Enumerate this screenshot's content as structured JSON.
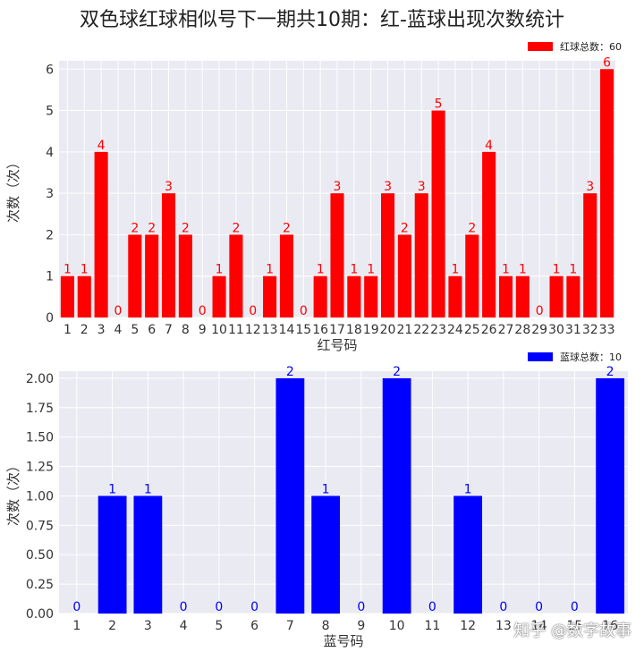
{
  "title": "双色球红球相似号下一期共10期：红-蓝球出现次数统计",
  "watermark": "知乎 @数字故事",
  "colors": {
    "red": "#ff0000",
    "blue": "#0000ff",
    "axes_bg": "#eaeaf2",
    "grid": "#ffffff"
  },
  "chart_data": [
    {
      "type": "bar",
      "categories": [
        "1",
        "2",
        "3",
        "4",
        "5",
        "6",
        "7",
        "8",
        "9",
        "10",
        "11",
        "12",
        "13",
        "14",
        "15",
        "16",
        "17",
        "18",
        "19",
        "20",
        "21",
        "22",
        "23",
        "24",
        "25",
        "26",
        "27",
        "28",
        "29",
        "30",
        "31",
        "32",
        "33"
      ],
      "values": [
        1,
        1,
        4,
        0,
        2,
        2,
        3,
        2,
        0,
        1,
        2,
        0,
        1,
        2,
        0,
        1,
        3,
        1,
        1,
        3,
        2,
        3,
        5,
        1,
        2,
        4,
        1,
        1,
        0,
        1,
        1,
        3,
        6
      ],
      "yticks": [
        "0",
        "1",
        "2",
        "3",
        "4",
        "5",
        "6"
      ],
      "ylim": [
        0,
        6.2
      ],
      "xlabel": "红号码",
      "ylabel": "次数（次）",
      "legend": "红球总数：60",
      "legend_position": "top-right",
      "color": "#ff0000",
      "grid": true
    },
    {
      "type": "bar",
      "categories": [
        "1",
        "2",
        "3",
        "4",
        "5",
        "6",
        "7",
        "8",
        "9",
        "10",
        "11",
        "12",
        "13",
        "14",
        "15",
        "16"
      ],
      "values": [
        0,
        1,
        1,
        0,
        0,
        0,
        2,
        1,
        0,
        2,
        0,
        1,
        0,
        0,
        0,
        2
      ],
      "yticks": [
        "0.00",
        "0.25",
        "0.50",
        "0.75",
        "1.00",
        "1.25",
        "1.50",
        "1.75",
        "2.00"
      ],
      "ylim": [
        0,
        2.06
      ],
      "xlabel": "蓝号码",
      "ylabel": "次数（次）",
      "legend": "蓝球总数：10",
      "legend_position": "top-right",
      "color": "#0000ff",
      "grid": true
    }
  ]
}
